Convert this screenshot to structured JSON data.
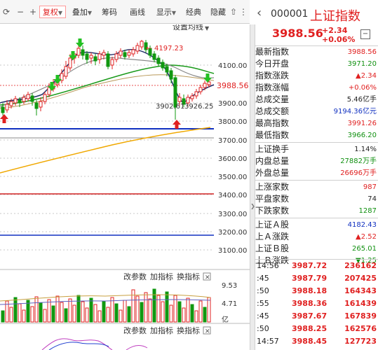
{
  "toolbar": {
    "items": [
      {
        "label": "复权",
        "selected": true,
        "dropdown": true
      },
      {
        "label": "叠加",
        "selected": false,
        "dropdown": true
      },
      {
        "label": "筹码",
        "selected": false,
        "dropdown": false
      },
      {
        "label": "画线",
        "selected": false,
        "dropdown": false
      },
      {
        "label": "显示",
        "selected": false,
        "dropdown": true
      },
      {
        "label": "经典",
        "selected": false,
        "dropdown": false
      },
      {
        "label": "隐藏",
        "selected": false,
        "dropdown": false
      }
    ],
    "icons": [
      "refresh-icon",
      "minus-icon",
      "plus-icon",
      "up-arrow-icon",
      "down-arrow-icon",
      "overflow-icon"
    ]
  },
  "chart": {
    "settings_label": "设置均线",
    "high_annotation": "4197.23",
    "low_annotation": "3902.61",
    "low_annotation_2": "3926.25",
    "current_price_label": "3988.56",
    "y_axis_ticks": [
      "4100.00",
      "3900.00",
      "3800.00",
      "3700.00",
      "3600.00",
      "3500.00",
      "3400.00",
      "3300.00",
      "3200.00",
      "3100.00"
    ],
    "volume_panel": {
      "buttons": [
        "改参数",
        "加指标",
        "换指标"
      ],
      "y_ticks": [
        "9.53",
        "4.71"
      ],
      "unit": "亿"
    },
    "lower_panel": {
      "buttons": [
        "改参数",
        "加指标",
        "换指标"
      ]
    }
  },
  "chart_data": {
    "type": "candlestick",
    "ylim": [
      3050,
      4280
    ],
    "ma_levels": {
      "blue_line": 3765,
      "red_line_1": 3410,
      "red_line_2": 3205,
      "long_ma_end": 3770
    },
    "high": 4197.23,
    "low": 3902.61,
    "current": 3988.56
  },
  "panel": {
    "code": "000001",
    "name": "上证指数",
    "price": "3988.56",
    "change": "+2.34",
    "change_pct": "+0.06%",
    "stats": [
      {
        "label": "最新指数",
        "value": "3988.56",
        "color": "red"
      },
      {
        "label": "今日开盘",
        "value": "3971.20",
        "color": "grn"
      },
      {
        "label": "指数涨跌",
        "value": "▲2.34",
        "color": "red"
      },
      {
        "label": "指数涨幅",
        "value": "+0.06%",
        "color": "red"
      },
      {
        "label": "总成交量",
        "value": "5.46亿手",
        "color": "blk"
      },
      {
        "label": "总成交额",
        "value": "9194.36亿元",
        "color": "blu"
      },
      {
        "label": "最高指数",
        "value": "3991.26",
        "color": "red"
      },
      {
        "label": "最低指数",
        "value": "3966.20",
        "color": "grn"
      }
    ],
    "stats2": [
      {
        "label": "上证换手",
        "value": "1.14%",
        "color": "blk"
      },
      {
        "label": "内盘总量",
        "value": "27882万手",
        "color": "grn"
      },
      {
        "label": "外盘总量",
        "value": "26696万手",
        "color": "red"
      }
    ],
    "stats3": [
      {
        "label": "上涨家数",
        "value": "987",
        "color": "red"
      },
      {
        "label": "平盘家数",
        "value": "74",
        "color": "blk"
      },
      {
        "label": "下跌家数",
        "value": "1287",
        "color": "grn"
      }
    ],
    "stats4": [
      {
        "label": "上证Ａ股",
        "value": "4182.43",
        "color": "blu"
      },
      {
        "label": "上Ａ涨跌",
        "value": "▲2.52",
        "color": "red"
      },
      {
        "label": "上证Ｂ股",
        "value": "265.01",
        "color": "grn"
      },
      {
        "label": "上Ｂ涨跌",
        "value": "▼1.25",
        "color": "grn"
      }
    ],
    "ticks": [
      {
        "time": "14:56",
        "price": "3987.72",
        "vol": "236162"
      },
      {
        "time": ":45",
        "price": "3987.79",
        "vol": "207425"
      },
      {
        "time": ":50",
        "price": "3988.18",
        "vol": "164343"
      },
      {
        "time": ":55",
        "price": "3988.36",
        "vol": "161439"
      },
      {
        "time": ":45",
        "price": "3987.67",
        "vol": "167839"
      },
      {
        "time": ":50",
        "price": "3988.25",
        "vol": "162576"
      },
      {
        "time": "14:57",
        "price": "3988.45",
        "vol": "127723"
      }
    ]
  }
}
